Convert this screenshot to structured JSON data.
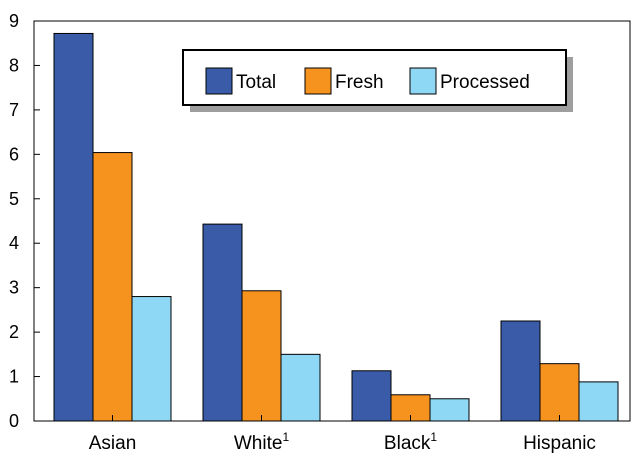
{
  "chart_data": {
    "type": "bar",
    "categories": [
      "Asian",
      "White",
      "Black",
      "Hispanic"
    ],
    "category_superscripts": [
      "",
      "1",
      "1",
      ""
    ],
    "series": [
      {
        "name": "Total",
        "values": [
          8.72,
          4.43,
          1.13,
          2.25
        ]
      },
      {
        "name": "Fresh",
        "values": [
          6.04,
          2.93,
          0.59,
          1.29
        ]
      },
      {
        "name": "Processed",
        "values": [
          2.8,
          1.5,
          0.5,
          0.88
        ]
      }
    ],
    "colors": {
      "Total": "#3a5ba8",
      "Fresh": "#f6931f",
      "Processed": "#8fd8f5"
    },
    "title": "",
    "xlabel": "",
    "ylabel": "",
    "ylim": [
      0,
      9
    ],
    "yticks": [
      0,
      1,
      2,
      3,
      4,
      5,
      6,
      7,
      8,
      9
    ],
    "grid": false,
    "legend": {
      "placement": "top-center"
    }
  }
}
